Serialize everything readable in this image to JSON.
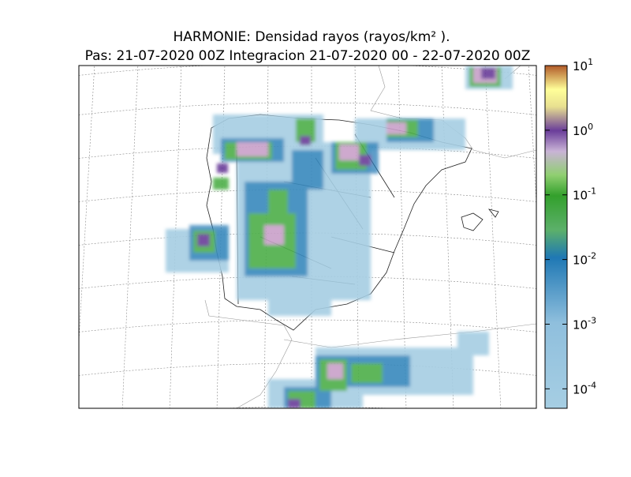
{
  "chart_data": {
    "type": "map",
    "title": "HARMONIE: Densidad rayos  (rayos/km² ).",
    "subtitle": "Pas: 21-07-2020 00Z Integracion 21-07-2020 00 - 22-07-2020 00Z",
    "colorbar": {
      "log_scale": true,
      "lim": [
        5e-05,
        10
      ],
      "ticks": [
        {
          "value": 10,
          "label": "10",
          "exponent": "1"
        },
        {
          "value": 1,
          "label": "10",
          "exponent": "0"
        },
        {
          "value": 0.1,
          "label": "10",
          "exponent": "-1"
        },
        {
          "value": 0.01,
          "label": "10",
          "exponent": "-2"
        },
        {
          "value": 0.001,
          "label": "10",
          "exponent": "-3"
        },
        {
          "value": 0.0001,
          "label": "10",
          "exponent": "-4"
        }
      ]
    }
  }
}
